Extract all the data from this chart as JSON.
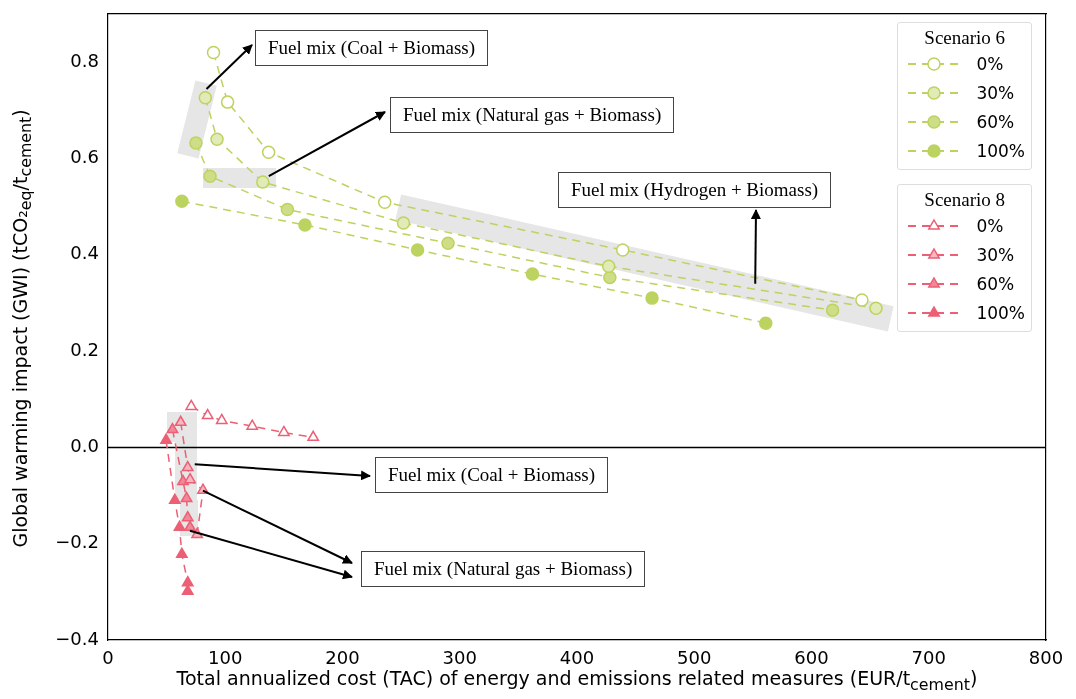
{
  "chart_data": {
    "type": "line",
    "xlabel": "Total annualized cost (TAC) of energy and emissions related measures (EUR/t$_{cement}$)",
    "ylabel": "Global warming impact (GWI) (tCO₂$_{eq}$/t$_{cement}$)",
    "xlim": [
      0,
      800
    ],
    "xticks": [
      0,
      100,
      200,
      300,
      400,
      500,
      600,
      700,
      800
    ],
    "ylim": [
      -0.4,
      0.9
    ],
    "yticks": [
      {
        "value": -0.4,
        "label": "−0.4"
      },
      {
        "value": -0.2,
        "label": "−0.2"
      },
      {
        "value": 0,
        "label": "0.0"
      },
      {
        "value": 0.2,
        "label": "0.2"
      },
      {
        "value": 0.4,
        "label": "0.4"
      },
      {
        "value": 0.6,
        "label": "0.6"
      },
      {
        "value": 0.8,
        "label": "0.8"
      }
    ],
    "legend": "top right",
    "legend_title": [
      "Scenario 6",
      "Scenario 8"
    ],
    "line_style": "dashed",
    "grid": false,
    "ref_lines": [
      {
        "axis": "y",
        "value": 0,
        "label": null,
        "color": "#000000",
        "line_style": "solid"
      }
    ],
    "series": [
      {
        "name": "0%",
        "color": "#bcd35f",
        "marker": "circle",
        "x": [
          90,
          102,
          137,
          236,
          439,
          643
        ],
        "values": [
          0.82,
          0.717,
          0.613,
          0.509,
          0.41,
          0.306
        ]
      },
      {
        "name": "30%",
        "color": "#bcd35f",
        "marker": "circle",
        "x": [
          83,
          93,
          132,
          252,
          427,
          655
        ],
        "values": [
          0.726,
          0.64,
          0.551,
          0.466,
          0.376,
          0.289
        ]
      },
      {
        "name": "60%",
        "color": "#bcd35f",
        "marker": "circle",
        "x": [
          75,
          87,
          153,
          290,
          428,
          618
        ],
        "values": [
          0.632,
          0.563,
          0.494,
          0.424,
          0.353,
          0.285
        ]
      },
      {
        "name": "100%",
        "color": "#bcd35f",
        "marker": "circle",
        "x": [
          63,
          168,
          264,
          362,
          464,
          561
        ],
        "values": [
          0.511,
          0.462,
          0.41,
          0.36,
          0.31,
          0.258
        ]
      },
      {
        "name": "0%",
        "color": "#ec5f74",
        "marker": "triangle",
        "x": [
          71,
          85,
          97,
          123,
          150,
          175
        ],
        "values": [
          0.085,
          0.066,
          0.056,
          0.044,
          0.031,
          0.021
        ]
      },
      {
        "name": "30%",
        "color": "#ec5f74",
        "marker": "triangle",
        "x": [
          62,
          68,
          70,
          81,
          76
        ],
        "values": [
          0.052,
          -0.042,
          -0.067,
          -0.089,
          -0.181
        ]
      },
      {
        "name": "60%",
        "color": "#ec5f74",
        "marker": "triangle",
        "x": [
          55,
          64,
          67,
          68,
          70
        ],
        "values": [
          0.037,
          -0.071,
          -0.106,
          -0.146,
          -0.166
        ]
      },
      {
        "name": "100%",
        "color": "#ec5f74",
        "marker": "triangle",
        "x": [
          49.5,
          57,
          61,
          63,
          68,
          68
        ],
        "values": [
          0.015,
          -0.11,
          -0.166,
          -0.222,
          -0.281,
          -0.299
        ]
      }
    ],
    "annotations": [
      {
        "text": "Fuel mix (Coal + Biomass)",
        "x": 84,
        "y": 0.74
      },
      {
        "text": "Fuel mix (Natural gas + Biomass)",
        "x": 132,
        "y": 0.551
      },
      {
        "text": "Fuel mix (Hydrogen + Biomass)",
        "x": 552,
        "y": 0.34
      },
      {
        "text": "Fuel mix (Coal + Biomass)",
        "x": 74,
        "y": -0.035
      },
      {
        "text": "Fuel mix (Natural gas + Biomass)",
        "x": 81,
        "y": -0.09
      }
    ]
  }
}
